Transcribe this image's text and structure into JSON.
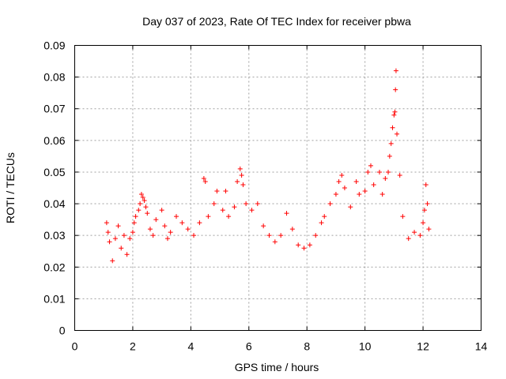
{
  "chart_data": {
    "type": "scatter",
    "title": "Day 037 of 2023, Rate Of TEC Index for receiver pbwa",
    "xlabel": "GPS time / hours",
    "ylabel": "ROTI / TECUs",
    "xlim": [
      0,
      14
    ],
    "ylim": [
      0,
      0.09
    ],
    "xticks": [
      "0",
      "2",
      "4",
      "6",
      "8",
      "10",
      "12",
      "14"
    ],
    "yticks": [
      "0",
      "0.01",
      "0.02",
      "0.03",
      "0.04",
      "0.05",
      "0.06",
      "0.07",
      "0.08",
      "0.09"
    ],
    "grid": true,
    "marker": "plus",
    "color": "#ff0000",
    "series": [
      {
        "points": [
          [
            1.1,
            0.034
          ],
          [
            1.15,
            0.031
          ],
          [
            1.2,
            0.028
          ],
          [
            1.3,
            0.022
          ],
          [
            1.4,
            0.029
          ],
          [
            1.5,
            0.033
          ],
          [
            1.6,
            0.026
          ],
          [
            1.7,
            0.03
          ],
          [
            1.8,
            0.024
          ],
          [
            1.9,
            0.029
          ],
          [
            2.0,
            0.031
          ],
          [
            2.05,
            0.034
          ],
          [
            2.1,
            0.036
          ],
          [
            2.2,
            0.038
          ],
          [
            2.25,
            0.04
          ],
          [
            2.3,
            0.043
          ],
          [
            2.35,
            0.042
          ],
          [
            2.4,
            0.041
          ],
          [
            2.45,
            0.039
          ],
          [
            2.5,
            0.037
          ],
          [
            2.6,
            0.032
          ],
          [
            2.7,
            0.03
          ],
          [
            2.8,
            0.035
          ],
          [
            3.0,
            0.038
          ],
          [
            3.1,
            0.033
          ],
          [
            3.2,
            0.029
          ],
          [
            3.3,
            0.031
          ],
          [
            3.5,
            0.036
          ],
          [
            3.7,
            0.034
          ],
          [
            3.9,
            0.032
          ],
          [
            4.1,
            0.03
          ],
          [
            4.3,
            0.034
          ],
          [
            4.45,
            0.048
          ],
          [
            4.5,
            0.047
          ],
          [
            4.6,
            0.036
          ],
          [
            4.8,
            0.04
          ],
          [
            4.9,
            0.044
          ],
          [
            5.1,
            0.038
          ],
          [
            5.2,
            0.044
          ],
          [
            5.3,
            0.036
          ],
          [
            5.5,
            0.039
          ],
          [
            5.6,
            0.047
          ],
          [
            5.7,
            0.051
          ],
          [
            5.75,
            0.049
          ],
          [
            5.8,
            0.046
          ],
          [
            5.9,
            0.04
          ],
          [
            6.1,
            0.038
          ],
          [
            6.3,
            0.04
          ],
          [
            6.5,
            0.033
          ],
          [
            6.7,
            0.03
          ],
          [
            6.9,
            0.028
          ],
          [
            7.1,
            0.03
          ],
          [
            7.3,
            0.037
          ],
          [
            7.5,
            0.032
          ],
          [
            7.7,
            0.027
          ],
          [
            7.9,
            0.026
          ],
          [
            8.1,
            0.027
          ],
          [
            8.3,
            0.03
          ],
          [
            8.5,
            0.034
          ],
          [
            8.6,
            0.036
          ],
          [
            8.8,
            0.04
          ],
          [
            9.0,
            0.043
          ],
          [
            9.1,
            0.047
          ],
          [
            9.2,
            0.049
          ],
          [
            9.3,
            0.045
          ],
          [
            9.5,
            0.039
          ],
          [
            9.7,
            0.047
          ],
          [
            9.8,
            0.043
          ],
          [
            10.0,
            0.044
          ],
          [
            10.1,
            0.05
          ],
          [
            10.2,
            0.052
          ],
          [
            10.3,
            0.046
          ],
          [
            10.5,
            0.05
          ],
          [
            10.6,
            0.043
          ],
          [
            10.7,
            0.048
          ],
          [
            10.8,
            0.05
          ],
          [
            10.85,
            0.055
          ],
          [
            10.9,
            0.059
          ],
          [
            10.95,
            0.064
          ],
          [
            11.0,
            0.068
          ],
          [
            11.03,
            0.069
          ],
          [
            11.05,
            0.076
          ],
          [
            11.07,
            0.082
          ],
          [
            11.1,
            0.062
          ],
          [
            11.2,
            0.049
          ],
          [
            11.3,
            0.036
          ],
          [
            11.5,
            0.029
          ],
          [
            11.7,
            0.031
          ],
          [
            11.9,
            0.03
          ],
          [
            12.0,
            0.034
          ],
          [
            12.05,
            0.038
          ],
          [
            12.1,
            0.046
          ],
          [
            12.15,
            0.04
          ],
          [
            12.2,
            0.032
          ]
        ]
      }
    ]
  }
}
